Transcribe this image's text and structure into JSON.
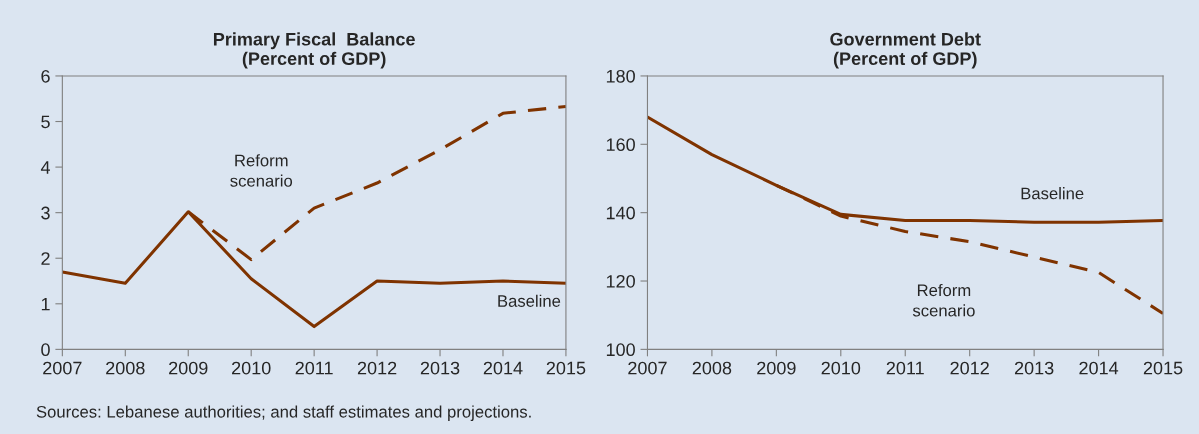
{
  "chart_data": [
    {
      "type": "line",
      "title": "Primary Fiscal  Balance\n(Percent of GDP)",
      "x": [
        2007,
        2008,
        2009,
        2010,
        2011,
        2012,
        2013,
        2014,
        2015
      ],
      "xlim": [
        2007,
        2015
      ],
      "xticks": [
        2007,
        2008,
        2009,
        2010,
        2011,
        2012,
        2013,
        2014,
        2015
      ],
      "ylim": [
        0,
        6
      ],
      "yticks": [
        0,
        1,
        2,
        3,
        4,
        5,
        6
      ],
      "grid": false,
      "legend": false,
      "series": [
        {
          "name": "Baseline",
          "color": "#7f3300",
          "line_style": "solid",
          "values": [
            1.7,
            1.45,
            3.02,
            1.55,
            0.5,
            1.5,
            1.45,
            1.5,
            1.45
          ]
        },
        {
          "name": "Reform\nscenario",
          "color": "#7f3300",
          "line_style": "dashed",
          "values": [
            null,
            null,
            3.02,
            1.97,
            3.1,
            3.65,
            4.38,
            5.18,
            5.33
          ]
        }
      ],
      "annotations": [
        "Sources: Lebanese authorities; and staff estimates and projections."
      ]
    },
    {
      "type": "line",
      "title": "Government Debt\n(Percent of GDP)",
      "x": [
        2007,
        2008,
        2009,
        2010,
        2011,
        2012,
        2013,
        2014,
        2015
      ],
      "xlim": [
        2007,
        2015
      ],
      "xticks": [
        2007,
        2008,
        2009,
        2010,
        2011,
        2012,
        2013,
        2014,
        2015
      ],
      "ylim": [
        100,
        180
      ],
      "yticks": [
        100,
        120,
        140,
        160,
        180
      ],
      "grid": false,
      "legend": false,
      "series": [
        {
          "name": "Baseline",
          "color": "#7f3300",
          "line_style": "solid",
          "values": [
            168,
            157,
            148,
            139.5,
            137.7,
            137.7,
            137.2,
            137.2,
            137.7
          ]
        },
        {
          "name": "Reform\nscenario",
          "color": "#7f3300",
          "line_style": "dashed",
          "values": [
            null,
            null,
            148,
            139,
            134.5,
            131.5,
            127,
            122.5,
            110.5
          ]
        }
      ]
    }
  ]
}
